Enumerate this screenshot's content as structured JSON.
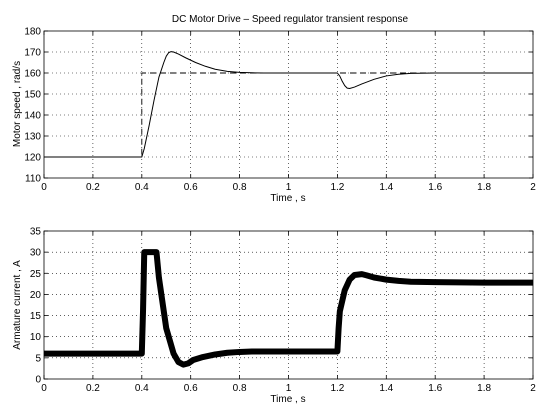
{
  "chart_data": [
    {
      "type": "line",
      "title": "DC Motor Drive – Speed regulator transient response",
      "xlabel": "Time , s",
      "ylabel": "Motor speed , rad/s",
      "xlim": [
        0,
        2
      ],
      "ylim": [
        110,
        180
      ],
      "xticks": [
        "0",
        "0.2",
        "0.4",
        "0.6",
        "0.8",
        "1",
        "1.2",
        "1.4",
        "1.6",
        "1.8",
        "2"
      ],
      "yticks": [
        "110",
        "120",
        "130",
        "140",
        "150",
        "160",
        "170",
        "180"
      ],
      "grid": true,
      "series": [
        {
          "style": "solid",
          "x": [
            0,
            0.4,
            0.41,
            0.43,
            0.45,
            0.47,
            0.49,
            0.5,
            0.51,
            0.52,
            0.53,
            0.55,
            0.58,
            0.62,
            0.66,
            0.7,
            0.75,
            0.8,
            0.85,
            0.9,
            1.0,
            1.1,
            1.2,
            1.21,
            1.22,
            1.23,
            1.24,
            1.25,
            1.27,
            1.3,
            1.35,
            1.4,
            1.45,
            1.5,
            1.6,
            1.7,
            2.0
          ],
          "y": [
            120,
            120,
            124,
            135,
            147,
            158,
            165,
            168,
            169.7,
            170.2,
            170,
            169,
            167.2,
            165,
            163.2,
            161.8,
            160.8,
            160.3,
            160.1,
            160,
            160,
            160,
            160,
            158.5,
            156,
            154,
            152.8,
            152.6,
            153.3,
            154.8,
            157,
            158.6,
            159.4,
            159.8,
            160,
            160,
            160
          ]
        },
        {
          "style": "dashed",
          "x": [
            0,
            0.4,
            0.4,
            2.0
          ],
          "y": [
            120,
            120,
            160,
            160
          ]
        }
      ]
    },
    {
      "type": "line",
      "title": "",
      "xlabel": "Time , s",
      "ylabel": "Armature current , A",
      "xlim": [
        0,
        2
      ],
      "ylim": [
        0,
        35
      ],
      "xticks": [
        "0",
        "0.2",
        "0.4",
        "0.6",
        "0.8",
        "1",
        "1.2",
        "1.4",
        "1.6",
        "1.8",
        "2"
      ],
      "yticks": [
        "0",
        "5",
        "10",
        "15",
        "20",
        "25",
        "30",
        "35"
      ],
      "grid": true,
      "series": [
        {
          "style": "thick",
          "x": [
            0,
            0.4,
            0.405,
            0.41,
            0.46,
            0.47,
            0.5,
            0.53,
            0.55,
            0.57,
            0.59,
            0.61,
            0.65,
            0.7,
            0.75,
            0.8,
            0.85,
            0.9,
            1.0,
            1.1,
            1.2,
            1.205,
            1.21,
            1.23,
            1.25,
            1.27,
            1.3,
            1.32,
            1.35,
            1.4,
            1.45,
            1.5,
            1.6,
            1.8,
            2.0
          ],
          "y": [
            6,
            6,
            16,
            30,
            30,
            24,
            12,
            6,
            4,
            3.4,
            3.7,
            4.5,
            5.2,
            5.8,
            6.2,
            6.4,
            6.5,
            6.5,
            6.5,
            6.5,
            6.5,
            12,
            16,
            21,
            23.5,
            24.6,
            24.8,
            24.5,
            24,
            23.5,
            23.2,
            23,
            22.9,
            22.8,
            22.8
          ]
        }
      ]
    }
  ]
}
